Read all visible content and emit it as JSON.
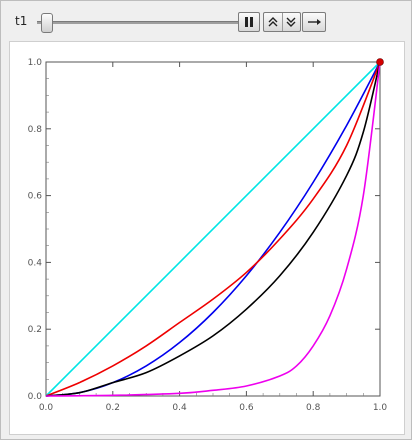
{
  "controls": {
    "slider_label": "t1",
    "slider_value": 0.03,
    "pause_icon": "pause-icon",
    "faster_icon": "double-chevron-up-icon",
    "slower_icon": "double-chevron-down-icon",
    "step_icon": "arrow-right-icon"
  },
  "chart_data": {
    "type": "line",
    "xlim": [
      0,
      1
    ],
    "ylim": [
      0,
      1
    ],
    "x_ticks": [
      "0.0",
      "0.2",
      "0.4",
      "0.6",
      "0.8",
      "1.0"
    ],
    "y_ticks": [
      "0.0",
      "0.2",
      "0.4",
      "0.6",
      "0.8",
      "1.0"
    ],
    "grid": false,
    "series": [
      {
        "color": "#00e5e5",
        "x": [
          0,
          0.2,
          0.4,
          0.6,
          0.8,
          1.0
        ],
        "y": [
          0,
          0.2,
          0.4,
          0.6,
          0.8,
          1.0
        ]
      },
      {
        "color": "#0000ee",
        "x": [
          0,
          0.1,
          0.2,
          0.3,
          0.4,
          0.5,
          0.6,
          0.7,
          0.8,
          0.9,
          1.0
        ],
        "y": [
          0,
          0.01,
          0.04,
          0.09,
          0.16,
          0.25,
          0.36,
          0.49,
          0.64,
          0.81,
          1.0
        ]
      },
      {
        "color": "#ee0000",
        "x": [
          0,
          0.1,
          0.2,
          0.3,
          0.4,
          0.5,
          0.6,
          0.7,
          0.8,
          0.9,
          1.0
        ],
        "y": [
          0,
          0.04,
          0.09,
          0.15,
          0.22,
          0.29,
          0.37,
          0.47,
          0.59,
          0.75,
          1.0
        ]
      },
      {
        "color": "#000000",
        "x": [
          0,
          0.1,
          0.2,
          0.3,
          0.4,
          0.5,
          0.6,
          0.7,
          0.8,
          0.9,
          0.95,
          1.0
        ],
        "y": [
          0,
          0.01,
          0.04,
          0.07,
          0.12,
          0.18,
          0.26,
          0.36,
          0.49,
          0.66,
          0.79,
          1.0
        ]
      },
      {
        "color": "#ee00ee",
        "x": [
          0,
          0.2,
          0.4,
          0.5,
          0.6,
          0.7,
          0.75,
          0.8,
          0.85,
          0.9,
          0.95,
          1.0
        ],
        "y": [
          0,
          0.002,
          0.008,
          0.017,
          0.03,
          0.06,
          0.09,
          0.15,
          0.24,
          0.38,
          0.6,
          1.0
        ]
      }
    ],
    "point": {
      "x": 1.0,
      "y": 1.0,
      "color": "#d40000"
    }
  }
}
